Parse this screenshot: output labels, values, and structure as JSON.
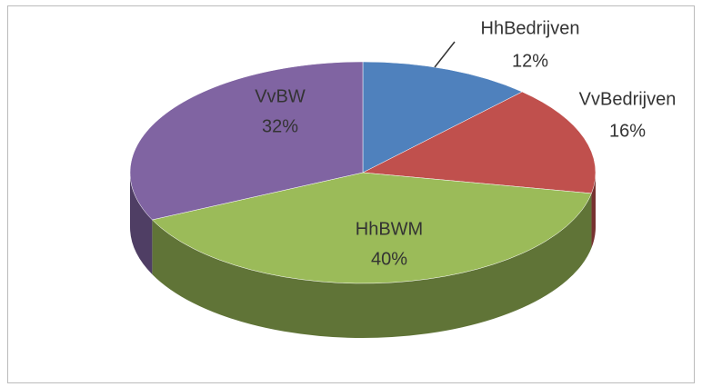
{
  "chart_data": {
    "type": "pie",
    "categories": [
      "HhBedrijven",
      "VvBedrijven",
      "HhBWM",
      "VvBW"
    ],
    "values": [
      12,
      16,
      40,
      32
    ],
    "value_labels": [
      "12%",
      "16%",
      "40%",
      "32%"
    ],
    "colors": [
      "#4f81bd",
      "#c0504d",
      "#9bbb59",
      "#8064a2"
    ]
  }
}
